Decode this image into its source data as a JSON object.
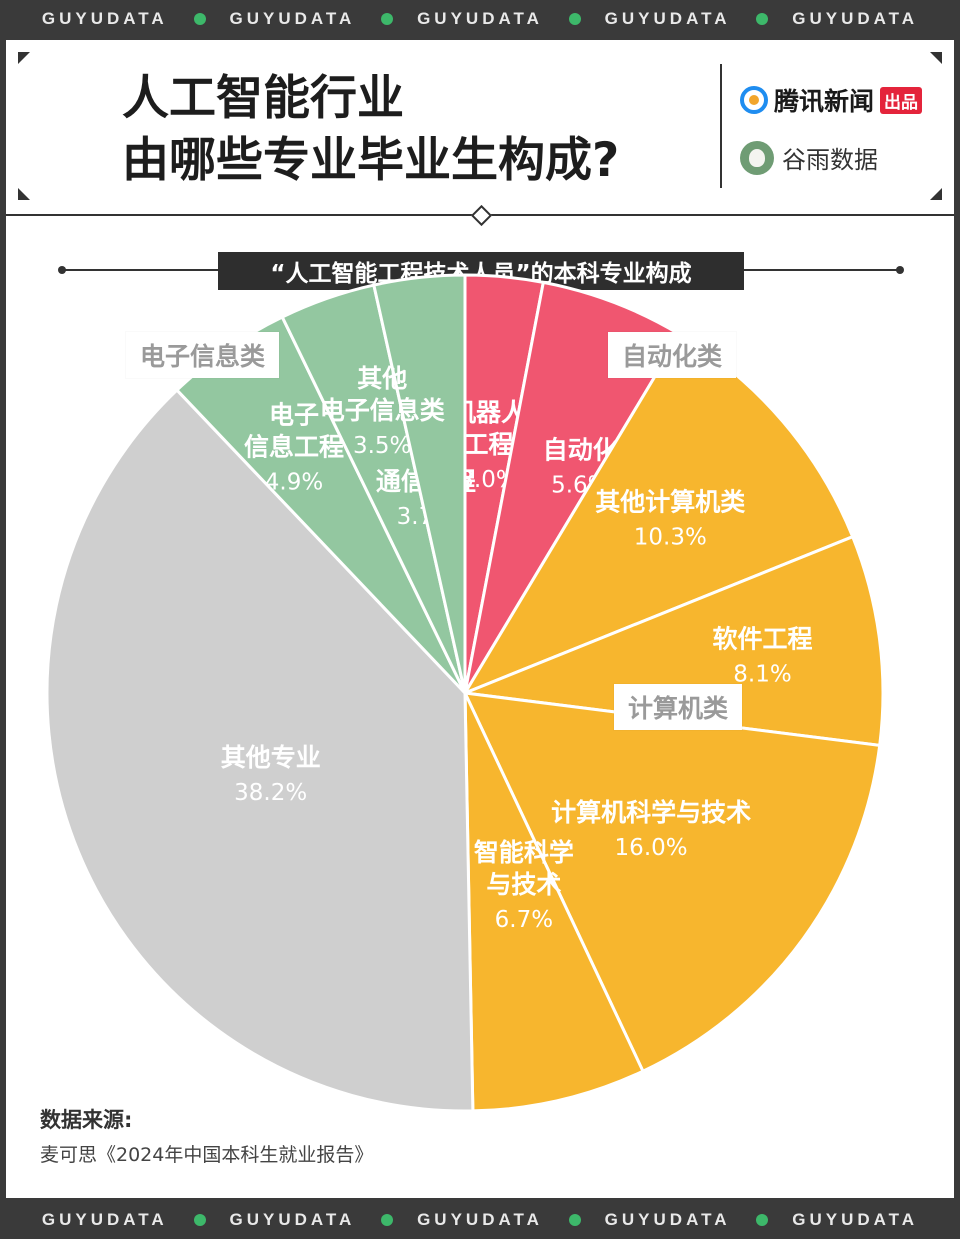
{
  "banner": {
    "text": "GUYUDATA",
    "count": 5
  },
  "title": {
    "line1": "人工智能行业",
    "line2": "由哪些专业毕业生构成?"
  },
  "logos": {
    "tencent": "腾讯新闻",
    "tencent_tag": "出品",
    "guyu": "谷雨数据"
  },
  "subtitle": "“人工智能工程技术人员”的本科专业构成",
  "chart_data": {
    "type": "pie",
    "title": "“人工智能工程技术人员”的本科专业构成",
    "slices": [
      {
        "label": "机器人\n工程",
        "value": 3.0,
        "pct": "3.0%",
        "group": "自动化类",
        "color": "#f05670"
      },
      {
        "label": "自动化",
        "value": 5.6,
        "pct": "5.6%",
        "group": "自动化类",
        "color": "#f05670"
      },
      {
        "label": "其他计算机类",
        "value": 10.3,
        "pct": "10.3%",
        "group": "计算机类",
        "color": "#f7b62e"
      },
      {
        "label": "软件工程",
        "value": 8.1,
        "pct": "8.1%",
        "group": "计算机类",
        "color": "#f7b62e"
      },
      {
        "label": "计算机科学与技术",
        "value": 16.0,
        "pct": "16.0%",
        "group": "计算机类",
        "color": "#f7b62e"
      },
      {
        "label": "智能科学\n与技术",
        "value": 6.7,
        "pct": "6.7%",
        "group": "计算机类",
        "color": "#f7b62e"
      },
      {
        "label": "其他专业",
        "value": 38.2,
        "pct": "38.2%",
        "group": "",
        "color": "#cfcfcf"
      },
      {
        "label": "电子\n信息工程",
        "value": 4.9,
        "pct": "4.9%",
        "group": "电子信息类",
        "color": "#93c7a0"
      },
      {
        "label": "通信工程",
        "value": 3.7,
        "pct": "3.7%",
        "group": "电子信息类",
        "color": "#93c7a0"
      },
      {
        "label": "其他\n电子信息类",
        "value": 3.5,
        "pct": "3.5%",
        "group": "电子信息类",
        "color": "#93c7a0"
      }
    ],
    "groups": [
      "电子信息类",
      "自动化类",
      "计算机类"
    ]
  },
  "source": {
    "title": "数据来源:",
    "text": "麦可思《2024年中国本科生就业报告》"
  }
}
